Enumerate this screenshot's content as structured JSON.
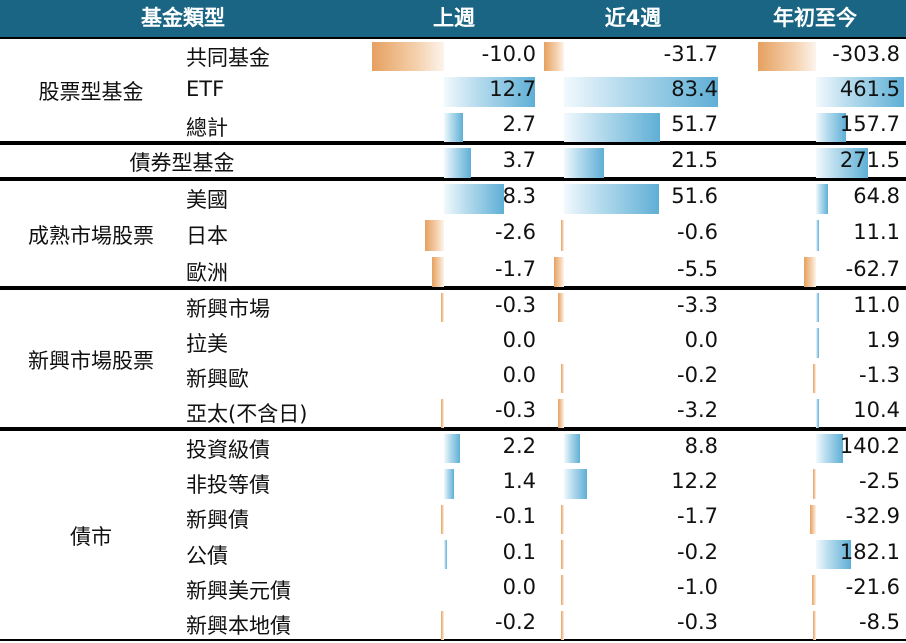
{
  "header": {
    "category": "基金類型",
    "col1": "上週",
    "col2": "近4週",
    "col3": "年初至今"
  },
  "groups": [
    {
      "label": "股票型基金",
      "rows": [
        {
          "label": "共同基金",
          "v1": "-10.0",
          "v2": "-31.7",
          "v3": "-303.8"
        },
        {
          "label": "ETF",
          "v1": "12.7",
          "v2": "83.4",
          "v3": "461.5"
        },
        {
          "label": "總計",
          "v1": "2.7",
          "v2": "51.7",
          "v3": "157.7"
        }
      ]
    },
    {
      "label": "債券型基金",
      "rows": [
        {
          "label": "",
          "v1": "3.7",
          "v2": "21.5",
          "v3": "271.5"
        }
      ]
    },
    {
      "label": "成熟市場股票",
      "rows": [
        {
          "label": "美國",
          "v1": "8.3",
          "v2": "51.6",
          "v3": "64.8"
        },
        {
          "label": "日本",
          "v1": "-2.6",
          "v2": "-0.6",
          "v3": "11.1"
        },
        {
          "label": "歐洲",
          "v1": "-1.7",
          "v2": "-5.5",
          "v3": "-62.7"
        }
      ]
    },
    {
      "label": "新興市場股票",
      "rows": [
        {
          "label": "新興市場",
          "v1": "-0.3",
          "v2": "-3.3",
          "v3": "11.0"
        },
        {
          "label": "拉美",
          "v1": "0.0",
          "v2": "0.0",
          "v3": "1.9"
        },
        {
          "label": "新興歐",
          "v1": "0.0",
          "v2": "-0.2",
          "v3": "-1.3"
        },
        {
          "label": "亞太(不含日)",
          "v1": "-0.3",
          "v2": "-3.2",
          "v3": "10.4"
        }
      ]
    },
    {
      "label": "債市",
      "rows": [
        {
          "label": "投資級債",
          "v1": "2.2",
          "v2": "8.8",
          "v3": "140.2"
        },
        {
          "label": "非投等債",
          "v1": "1.4",
          "v2": "12.2",
          "v3": "-2.5"
        },
        {
          "label": "新興債",
          "v1": "-0.1",
          "v2": "-1.7",
          "v3": "-32.9"
        },
        {
          "label": "公債",
          "v1": "0.1",
          "v2": "-0.2",
          "v3": "182.1"
        },
        {
          "label": "新興美元債",
          "v1": "0.0",
          "v2": "-1.0",
          "v3": "-21.6"
        },
        {
          "label": "新興本地債",
          "v1": "-0.2",
          "v2": "-0.3",
          "v3": "-8.5"
        }
      ]
    }
  ],
  "colors": {
    "header_bg": "#1b6584",
    "positive_bar": "#5fafd6",
    "negative_bar": "#e6a060"
  }
}
